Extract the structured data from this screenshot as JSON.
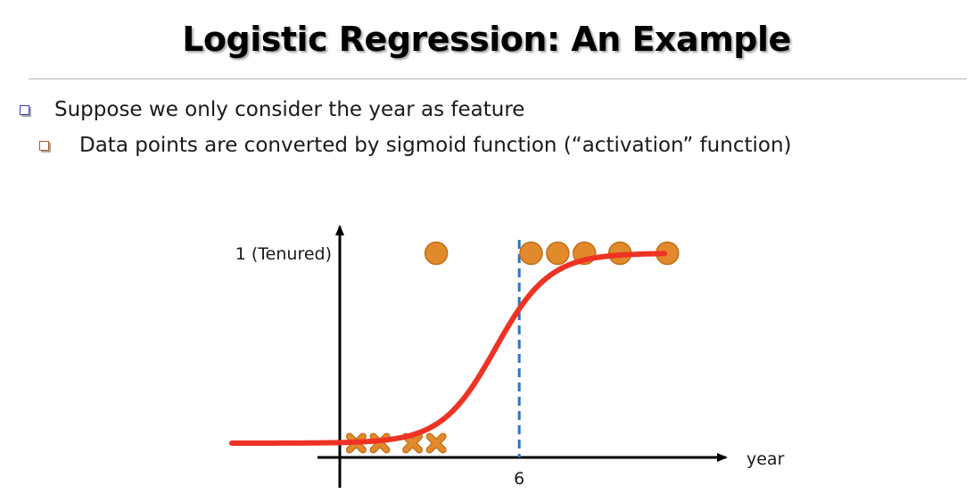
{
  "slide": {
    "title": "Logistic Regression: An Example",
    "bullets": [
      {
        "text": "Suppose we only consider the year as feature",
        "icon": "square-bullet-icon"
      },
      {
        "text": "Data points are converted by sigmoid function (“activation” function)",
        "icon": "square-bullet-icon"
      }
    ]
  },
  "colors": {
    "primary_bullet": "#3a3ab8",
    "secondary_bullet": "#b4562a",
    "points": "#e08a2b",
    "points_edge": "#c26f18",
    "curve": "#ee3224",
    "threshold": "#2e75c0",
    "axis": "#000000"
  },
  "chart_data": {
    "type": "scatter",
    "title": "",
    "xlabel": "year",
    "ylabel": "",
    "y_tick_labels": [
      {
        "y": 1,
        "label": "1 (Tenured)"
      }
    ],
    "x_tick_labels": [
      {
        "x": 6,
        "label": "6"
      }
    ],
    "xlim": [
      -4.9,
      14.3
    ],
    "ylim": [
      0,
      1
    ],
    "threshold_x": 6,
    "series": [
      {
        "marker": "circle",
        "points": [
          {
            "x": 3.2,
            "y": 1
          },
          {
            "x": 6.4,
            "y": 1
          },
          {
            "x": 7.3,
            "y": 1
          },
          {
            "x": 8.2,
            "y": 1
          },
          {
            "x": 9.4,
            "y": 1
          },
          {
            "x": 11.0,
            "y": 1
          }
        ]
      },
      {
        "marker": "x",
        "points": [
          {
            "x": 0.5,
            "y": 0
          },
          {
            "x": 1.3,
            "y": 0
          },
          {
            "x": 2.4,
            "y": 0
          },
          {
            "x": 3.2,
            "y": 0
          }
        ]
      }
    ],
    "curve": {
      "type": "sigmoid",
      "midpoint": 5.2,
      "steepness": 1.1,
      "x_start": -3.7,
      "x_end": 10.9
    },
    "grid": false,
    "legend": "none"
  }
}
